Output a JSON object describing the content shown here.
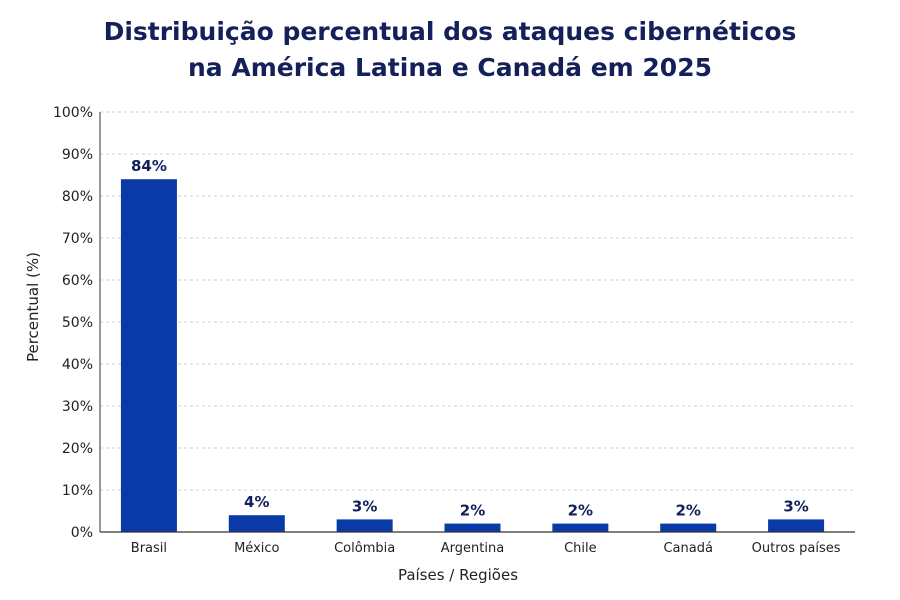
{
  "chart_data": {
    "type": "bar",
    "title_line1": "Distribuição percentual dos ataques cibernéticos",
    "title_line2": "na América Latina e Canadá em 2025",
    "xlabel": "Países / Regiões",
    "ylabel": "Percentual (%)",
    "ylim": [
      0,
      100
    ],
    "yticks": [
      0,
      10,
      20,
      30,
      40,
      50,
      60,
      70,
      80,
      90,
      100
    ],
    "ytick_suffix": "%",
    "grid": true,
    "categories": [
      "Brasil",
      "México",
      "Colômbia",
      "Argentina",
      "Chile",
      "Canadá",
      "Outros países"
    ],
    "values": [
      84,
      4,
      3,
      2,
      2,
      2,
      3
    ],
    "value_labels": [
      "84%",
      "4%",
      "3%",
      "2%",
      "2%",
      "2%",
      "3%"
    ],
    "bar_color": "#0a3aa8",
    "label_color": "#14205a"
  }
}
